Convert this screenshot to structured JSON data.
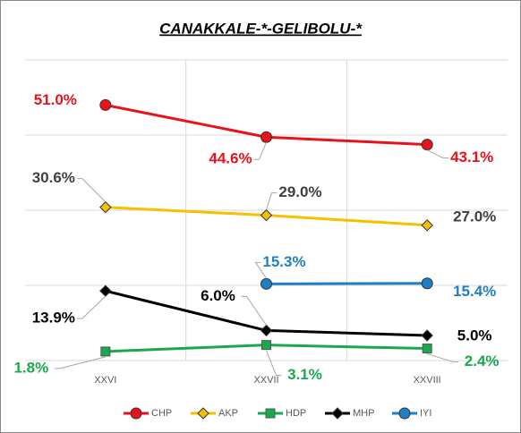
{
  "chart_data": {
    "type": "line",
    "title": "CANAKKALE-*-GELIBOLU-*",
    "categories": [
      "XXVI",
      "XXVII",
      "XXVIII"
    ],
    "ylim": [
      0,
      60
    ],
    "yticks": [
      0,
      15,
      30,
      45,
      60
    ],
    "grid": true,
    "legend": "bottom",
    "series": [
      {
        "name": "CHP",
        "color": "#e8121a",
        "label_color": "#e8121a",
        "marker": "circle",
        "values": [
          51.0,
          44.6,
          43.1
        ],
        "value_labels": [
          "51.0%",
          "44.6%",
          "43.1%"
        ]
      },
      {
        "name": "AKP",
        "color": "#f5c000",
        "label_color": "#404040",
        "marker": "diamond",
        "values": [
          30.6,
          29.0,
          27.0
        ],
        "value_labels": [
          "30.6%",
          "29.0%",
          "27.0%"
        ]
      },
      {
        "name": "HDP",
        "color": "#1aa84c",
        "label_color": "#1aa84c",
        "marker": "square",
        "values": [
          1.8,
          3.1,
          2.4
        ],
        "value_labels": [
          "1.8%",
          "3.1%",
          "2.4%"
        ]
      },
      {
        "name": "MHP",
        "color": "#000000",
        "label_color": "#000000",
        "marker": "diamond",
        "values": [
          13.9,
          6.0,
          5.0
        ],
        "value_labels": [
          "13.9%",
          "6.0%",
          "5.0%"
        ]
      },
      {
        "name": "IYI",
        "color": "#1f7fc4",
        "label_color": "#1f7fc4",
        "marker": "circle",
        "values": [
          null,
          15.3,
          15.4
        ],
        "value_labels": [
          null,
          "15.3%",
          "15.4%"
        ]
      }
    ]
  }
}
